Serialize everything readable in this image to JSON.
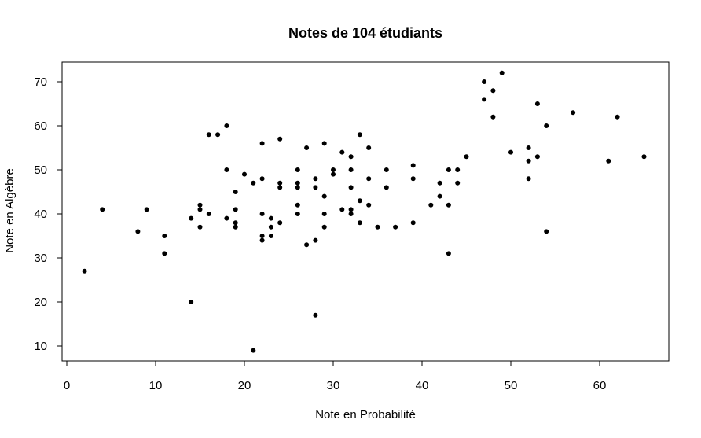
{
  "chart_data": {
    "type": "scatter",
    "title": "Notes de 104 étudiants",
    "xlabel": "Note en Probabilité",
    "ylabel": "Note en Algèbre",
    "xlim": [
      0,
      65
    ],
    "ylim": [
      9,
      72
    ],
    "xticks": [
      0,
      10,
      20,
      30,
      40,
      50,
      60
    ],
    "yticks": [
      10,
      20,
      30,
      40,
      50,
      60,
      70
    ],
    "grid": false,
    "point_color": "#000000",
    "points": [
      {
        "x": 2,
        "y": 27
      },
      {
        "x": 4,
        "y": 41
      },
      {
        "x": 8,
        "y": 36
      },
      {
        "x": 9,
        "y": 41
      },
      {
        "x": 11,
        "y": 35
      },
      {
        "x": 11,
        "y": 31
      },
      {
        "x": 14,
        "y": 39
      },
      {
        "x": 14,
        "y": 20
      },
      {
        "x": 15,
        "y": 42
      },
      {
        "x": 15,
        "y": 41
      },
      {
        "x": 15,
        "y": 37
      },
      {
        "x": 16,
        "y": 58
      },
      {
        "x": 16,
        "y": 40
      },
      {
        "x": 17,
        "y": 58
      },
      {
        "x": 18,
        "y": 60
      },
      {
        "x": 18,
        "y": 50
      },
      {
        "x": 18,
        "y": 39
      },
      {
        "x": 19,
        "y": 45
      },
      {
        "x": 19,
        "y": 41
      },
      {
        "x": 19,
        "y": 38
      },
      {
        "x": 19,
        "y": 37
      },
      {
        "x": 20,
        "y": 49
      },
      {
        "x": 21,
        "y": 47
      },
      {
        "x": 21,
        "y": 9
      },
      {
        "x": 22,
        "y": 56
      },
      {
        "x": 22,
        "y": 48
      },
      {
        "x": 22,
        "y": 40
      },
      {
        "x": 22,
        "y": 35
      },
      {
        "x": 22,
        "y": 34
      },
      {
        "x": 23,
        "y": 39
      },
      {
        "x": 23,
        "y": 37
      },
      {
        "x": 23,
        "y": 35
      },
      {
        "x": 24,
        "y": 57
      },
      {
        "x": 24,
        "y": 47
      },
      {
        "x": 24,
        "y": 46
      },
      {
        "x": 24,
        "y": 38
      },
      {
        "x": 26,
        "y": 50
      },
      {
        "x": 26,
        "y": 47
      },
      {
        "x": 26,
        "y": 46
      },
      {
        "x": 26,
        "y": 42
      },
      {
        "x": 26,
        "y": 40
      },
      {
        "x": 27,
        "y": 55
      },
      {
        "x": 27,
        "y": 33
      },
      {
        "x": 28,
        "y": 48
      },
      {
        "x": 28,
        "y": 46
      },
      {
        "x": 28,
        "y": 34
      },
      {
        "x": 28,
        "y": 17
      },
      {
        "x": 29,
        "y": 56
      },
      {
        "x": 29,
        "y": 44
      },
      {
        "x": 29,
        "y": 40
      },
      {
        "x": 29,
        "y": 37
      },
      {
        "x": 30,
        "y": 50
      },
      {
        "x": 30,
        "y": 49
      },
      {
        "x": 31,
        "y": 54
      },
      {
        "x": 31,
        "y": 41
      },
      {
        "x": 32,
        "y": 53
      },
      {
        "x": 32,
        "y": 50
      },
      {
        "x": 32,
        "y": 46
      },
      {
        "x": 32,
        "y": 41
      },
      {
        "x": 32,
        "y": 40
      },
      {
        "x": 33,
        "y": 58
      },
      {
        "x": 33,
        "y": 43
      },
      {
        "x": 33,
        "y": 38
      },
      {
        "x": 34,
        "y": 55
      },
      {
        "x": 34,
        "y": 48
      },
      {
        "x": 34,
        "y": 42
      },
      {
        "x": 35,
        "y": 37
      },
      {
        "x": 36,
        "y": 50
      },
      {
        "x": 36,
        "y": 46
      },
      {
        "x": 37,
        "y": 37
      },
      {
        "x": 39,
        "y": 51
      },
      {
        "x": 39,
        "y": 48
      },
      {
        "x": 39,
        "y": 38
      },
      {
        "x": 41,
        "y": 42
      },
      {
        "x": 42,
        "y": 47
      },
      {
        "x": 42,
        "y": 44
      },
      {
        "x": 43,
        "y": 50
      },
      {
        "x": 43,
        "y": 42
      },
      {
        "x": 43,
        "y": 31
      },
      {
        "x": 44,
        "y": 50
      },
      {
        "x": 44,
        "y": 47
      },
      {
        "x": 45,
        "y": 53
      },
      {
        "x": 47,
        "y": 70
      },
      {
        "x": 47,
        "y": 66
      },
      {
        "x": 48,
        "y": 68
      },
      {
        "x": 48,
        "y": 62
      },
      {
        "x": 49,
        "y": 72
      },
      {
        "x": 50,
        "y": 54
      },
      {
        "x": 52,
        "y": 55
      },
      {
        "x": 52,
        "y": 52
      },
      {
        "x": 52,
        "y": 48
      },
      {
        "x": 53,
        "y": 65
      },
      {
        "x": 53,
        "y": 53
      },
      {
        "x": 54,
        "y": 60
      },
      {
        "x": 54,
        "y": 36
      },
      {
        "x": 57,
        "y": 63
      },
      {
        "x": 61,
        "y": 52
      },
      {
        "x": 62,
        "y": 62
      },
      {
        "x": 65,
        "y": 53
      }
    ]
  }
}
